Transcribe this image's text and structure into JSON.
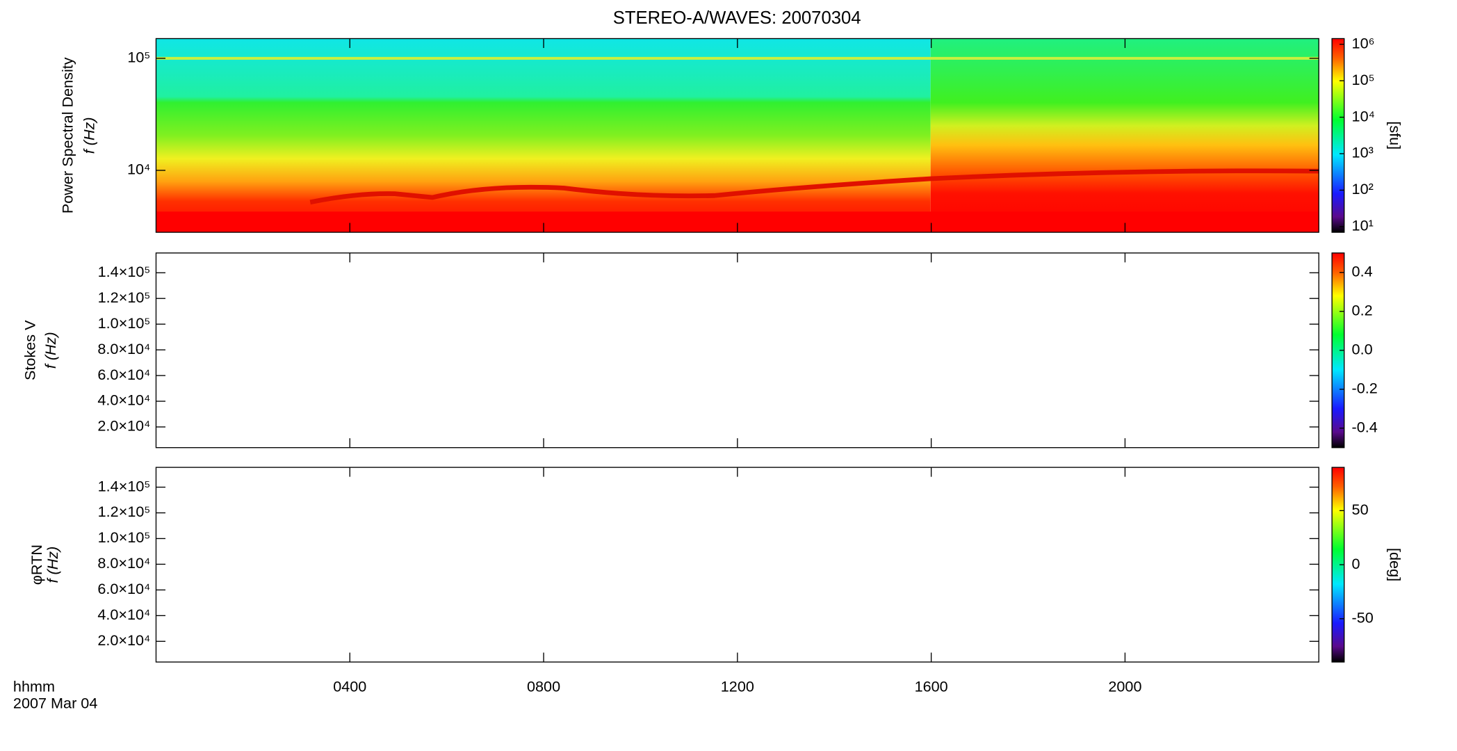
{
  "chart_data": [
    {
      "type": "heatmap",
      "title": "STEREO-A/WAVES: 20070304",
      "ylabel": [
        "Power Spectral Density",
        "f (Hz)"
      ],
      "yscale": "log",
      "ylim": [
        2800,
        150000
      ],
      "yticks": [
        {
          "value": 10000,
          "label": "10⁴"
        },
        {
          "value": 100000,
          "label": "10⁵"
        }
      ],
      "xlim": [
        0,
        24
      ],
      "colorbar": {
        "label": "[sfu]",
        "scale": "log",
        "lim": [
          7,
          1430000
        ],
        "ticks": [
          {
            "value": 10,
            "label": "10¹"
          },
          {
            "value": 100,
            "label": "10²"
          },
          {
            "value": 1000,
            "label": "10³"
          },
          {
            "value": 10000,
            "label": "10⁴"
          },
          {
            "value": 100000,
            "label": "10⁵"
          },
          {
            "value": 1000000,
            "label": "10⁶"
          }
        ]
      }
    },
    {
      "type": "heatmap",
      "ylabel": [
        "Stokes V",
        "f (Hz)"
      ],
      "yscale": "linear",
      "ylim": [
        3900,
        155400
      ],
      "yticks": [
        {
          "value": 20000,
          "label": "2.0×10⁴"
        },
        {
          "value": 40000,
          "label": "4.0×10⁴"
        },
        {
          "value": 60000,
          "label": "6.0×10⁴"
        },
        {
          "value": 80000,
          "label": "8.0×10⁴"
        },
        {
          "value": 100000,
          "label": "1.0×10⁵"
        },
        {
          "value": 120000,
          "label": "1.2×10⁵"
        },
        {
          "value": 140000,
          "label": "1.4×10⁵"
        }
      ],
      "xlim": [
        0,
        24
      ],
      "colorbar": {
        "scale": "linear",
        "lim": [
          -0.5,
          0.5
        ],
        "ticks": [
          {
            "value": -0.4,
            "label": "-0.4"
          },
          {
            "value": -0.2,
            "label": "-0.2"
          },
          {
            "value": 0,
            "label": "0.0"
          },
          {
            "value": 0.2,
            "label": "0.2"
          },
          {
            "value": 0.4,
            "label": "0.4"
          }
        ]
      }
    },
    {
      "type": "heatmap",
      "ylabel": [
        "φRTN",
        "f (Hz)"
      ],
      "yscale": "linear",
      "ylim": [
        3900,
        155400
      ],
      "yticks": [
        {
          "value": 20000,
          "label": "2.0×10⁴"
        },
        {
          "value": 40000,
          "label": "4.0×10⁴"
        },
        {
          "value": 60000,
          "label": "6.0×10⁴"
        },
        {
          "value": 80000,
          "label": "8.0×10⁴"
        },
        {
          "value": 100000,
          "label": "1.0×10⁵"
        },
        {
          "value": 120000,
          "label": "1.2×10⁵"
        },
        {
          "value": 140000,
          "label": "1.4×10⁵"
        }
      ],
      "xlim": [
        0,
        24
      ],
      "xlabel": "hhmm",
      "date_label": "2007 Mar 04",
      "xticks": [
        {
          "value": 4,
          "label": "0400"
        },
        {
          "value": 8,
          "label": "0800"
        },
        {
          "value": 12,
          "label": "1200"
        },
        {
          "value": 16,
          "label": "1600"
        },
        {
          "value": 20,
          "label": "2000"
        }
      ],
      "colorbar": {
        "label": "[deg]",
        "scale": "linear",
        "lim": [
          -90,
          90
        ],
        "ticks": [
          -50,
          0,
          50
        ]
      }
    }
  ]
}
